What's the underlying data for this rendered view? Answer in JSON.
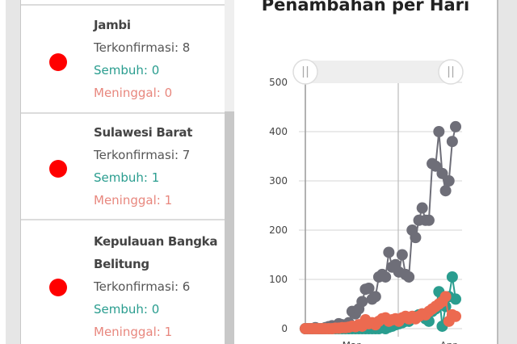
{
  "province_list": [
    {
      "name_lines": [
        "Jambi"
      ],
      "confirmed": "Terkonfirmasi: 8",
      "recovered": "Sembuh: 0",
      "deaths": "Meninggal: 0"
    },
    {
      "name_lines": [
        "Sulawesi Barat"
      ],
      "confirmed": "Terkonfirmasi: 7",
      "recovered": "Sembuh: 1",
      "deaths": "Meninggal: 1"
    },
    {
      "name_lines": [
        "Kepulauan Bangka",
        "Belitung"
      ],
      "confirmed": "Terkonfirmasi: 6",
      "recovered": "Sembuh: 0",
      "deaths": "Meninggal: 1"
    }
  ],
  "colors": {
    "dot": "#ff0000",
    "recovered": "#2a9d8f",
    "deaths": "#e8877e",
    "confirmed_series": "#6e6e78",
    "recovered_series": "#2a9d8f",
    "deaths_series": "#ec6a50"
  },
  "chart": {
    "title": "Penambahan per Hari",
    "range_slider": {
      "left_handle": "||",
      "right_handle": "||"
    }
  },
  "chart_data": {
    "type": "line",
    "title": "Penambahan per Hari",
    "xlabel": "",
    "ylabel": "",
    "ylim": [
      0,
      500
    ],
    "yticks": [
      0,
      100,
      200,
      300,
      400,
      500
    ],
    "xticks": [
      "Mar",
      "Apr"
    ],
    "grid": true,
    "series": [
      {
        "name": "Terkonfirmasi",
        "color": "#6e6e78",
        "values": [
          0,
          0,
          0,
          2,
          0,
          0,
          2,
          4,
          6,
          5,
          10,
          8,
          4,
          12,
          35,
          30,
          40,
          55,
          80,
          82,
          60,
          65,
          105,
          110,
          105,
          155,
          125,
          130,
          115,
          150,
          110,
          105,
          200,
          185,
          220,
          245,
          220,
          220,
          335,
          330,
          400,
          315,
          280,
          300,
          380,
          410
        ]
      },
      {
        "name": "Sembuh",
        "color": "#2a9d8f",
        "values": [
          0,
          0,
          0,
          0,
          0,
          0,
          0,
          0,
          0,
          0,
          0,
          0,
          0,
          0,
          0,
          0,
          0,
          0,
          0,
          0,
          0,
          0,
          0,
          2,
          0,
          3,
          5,
          8,
          10,
          12,
          15,
          15,
          20,
          25,
          28,
          30,
          20,
          15,
          35,
          40,
          75,
          5,
          45,
          65,
          105,
          60
        ]
      },
      {
        "name": "Meninggal",
        "color": "#ec6a50",
        "values": [
          0,
          0,
          0,
          0,
          0,
          0,
          0,
          0,
          0,
          1,
          1,
          2,
          2,
          3,
          5,
          4,
          8,
          5,
          18,
          10,
          12,
          8,
          15,
          20,
          22,
          15,
          18,
          20,
          15,
          22,
          25,
          20,
          25,
          20,
          25,
          30,
          28,
          35,
          40,
          45,
          50,
          55,
          65,
          15,
          28,
          25
        ]
      }
    ]
  }
}
